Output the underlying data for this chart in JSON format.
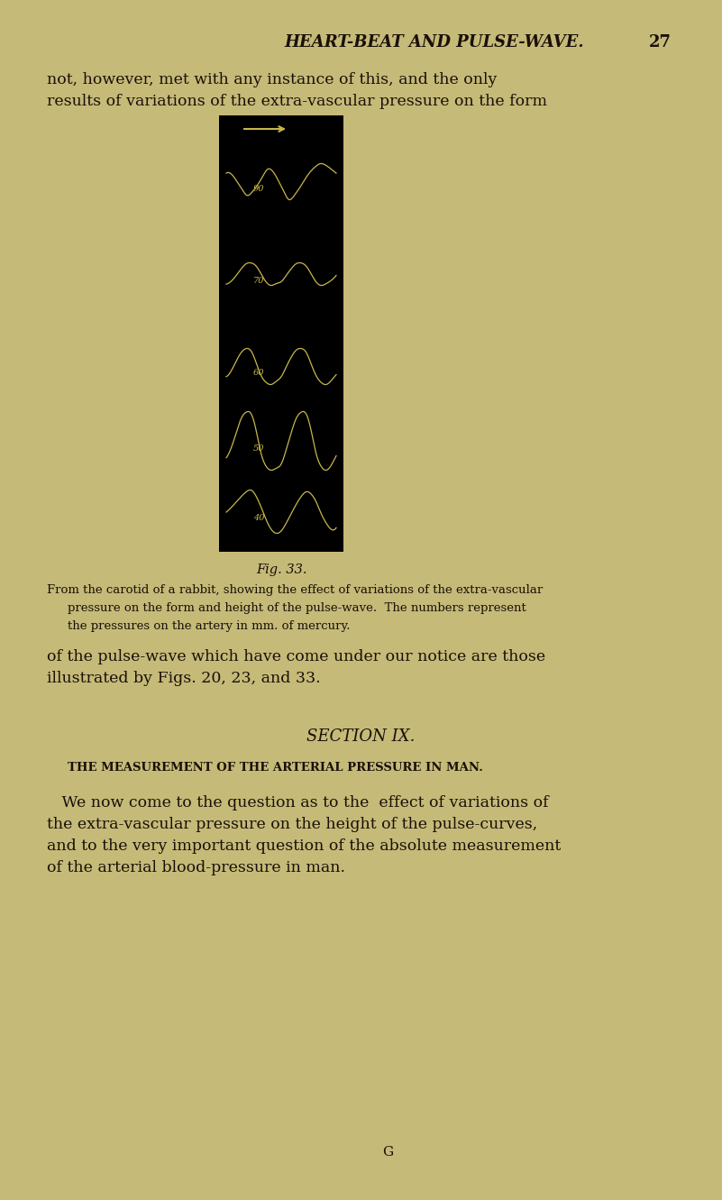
{
  "page_bg": "#c5ba78",
  "fig_bg": "#000000",
  "wave_color": "#c8b84a",
  "label_color": "#c8b84a",
  "text_color": "#1a1008",
  "header_text": "HEART-BEAT AND PULSE-WAVE.",
  "page_number": "27",
  "fig_caption": "Fig. 33.",
  "fig_caption2": "From the carotid of a rabbit, showing the effect of variations of the extra-vascular",
  "fig_caption3": "pressure on the form and height of the pulse-wave.  The numbers represent",
  "fig_caption4": "the pressures on the artery in mm. of mercury.",
  "para1_line1": "not, however, met with any instance of this, and the only",
  "para1_line2": "results of variations of the extra-vascular pressure on the form",
  "para2_line1": "of the pulse-wave which have come under our notice are those",
  "para2_line2": "illustrated by Figs. 20, 23, and 33.",
  "section_title": "SECTION IX.",
  "section_sub": "THE MEASUREMENT OF THE ARTERIAL PRESSURE IN MAN.",
  "para3_line1": "   We now come to the question as to the  effect of variations of",
  "para3_line2": "the extra-vascular pressure on the height of the pulse-curves,",
  "para3_line3": "and to the very important question of the absolute measurement",
  "para3_line4": "of the arterial blood-pressure in man.",
  "footer_G": "G",
  "pressures": [
    "90",
    "70",
    "60",
    "50",
    "40"
  ],
  "wave_90": [
    0.5,
    0.52,
    0.58,
    0.75,
    0.9,
    0.95,
    0.85,
    0.7,
    0.55,
    0.45,
    0.55,
    0.75,
    0.95,
    1.0,
    0.9,
    0.75,
    0.6,
    0.45,
    0.35,
    0.3,
    0.35,
    0.45,
    0.5
  ],
  "wave_70": [
    0.9,
    0.8,
    0.55,
    0.3,
    0.1,
    0.05,
    0.15,
    0.35,
    0.65,
    0.85,
    0.9,
    0.88,
    0.8,
    0.65,
    0.5,
    0.35,
    0.15,
    0.08,
    0.05,
    0.1,
    0.25,
    0.4,
    0.55
  ],
  "wave_60": [
    0.85,
    0.7,
    0.45,
    0.2,
    0.1,
    0.2,
    0.5,
    0.8,
    0.95,
    1.0,
    0.95,
    0.85,
    0.72,
    0.55,
    0.35,
    0.15,
    0.05,
    0.1,
    0.25,
    0.4,
    0.55,
    0.65,
    0.7
  ],
  "wave_50": [
    0.85,
    0.72,
    0.5,
    0.25,
    0.08,
    0.05,
    0.2,
    0.55,
    0.85,
    0.95,
    0.9,
    0.85,
    0.75,
    0.6,
    0.4,
    0.2,
    0.05,
    0.02,
    0.08,
    0.22,
    0.4,
    0.55,
    0.65
  ],
  "wave_40": [
    0.5,
    0.45,
    0.35,
    0.25,
    0.18,
    0.15,
    0.2,
    0.35,
    0.55,
    0.72,
    0.8,
    0.82,
    0.78,
    0.68,
    0.55,
    0.42,
    0.3,
    0.22,
    0.2,
    0.25,
    0.35,
    0.45,
    0.5
  ]
}
